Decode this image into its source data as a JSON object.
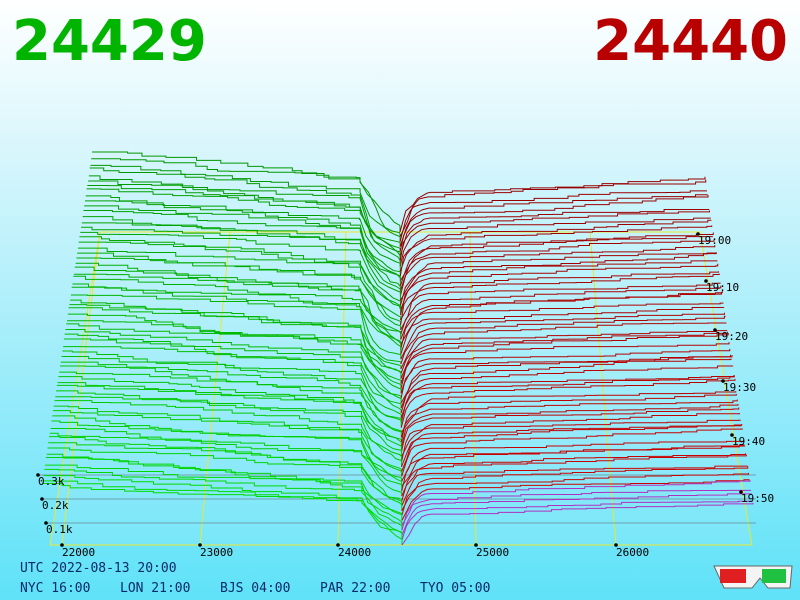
{
  "header": {
    "bid": "24429",
    "ask": "24440"
  },
  "price_axis": [
    "22000",
    "23000",
    "24000",
    "25000",
    "26000"
  ],
  "time_axis": [
    "19:00",
    "19:10",
    "19:20",
    "19:30",
    "19:40",
    "19:50"
  ],
  "depth_axis": [
    "0.3k",
    "0.2k",
    "0.1k"
  ],
  "footer": {
    "utc": "UTC 2022-08-13 20:00",
    "clocks": [
      "NYC 16:00",
      "LON 21:00",
      "BJS 04:00",
      "PAR 22:00",
      "TYO 05:00"
    ]
  }
}
